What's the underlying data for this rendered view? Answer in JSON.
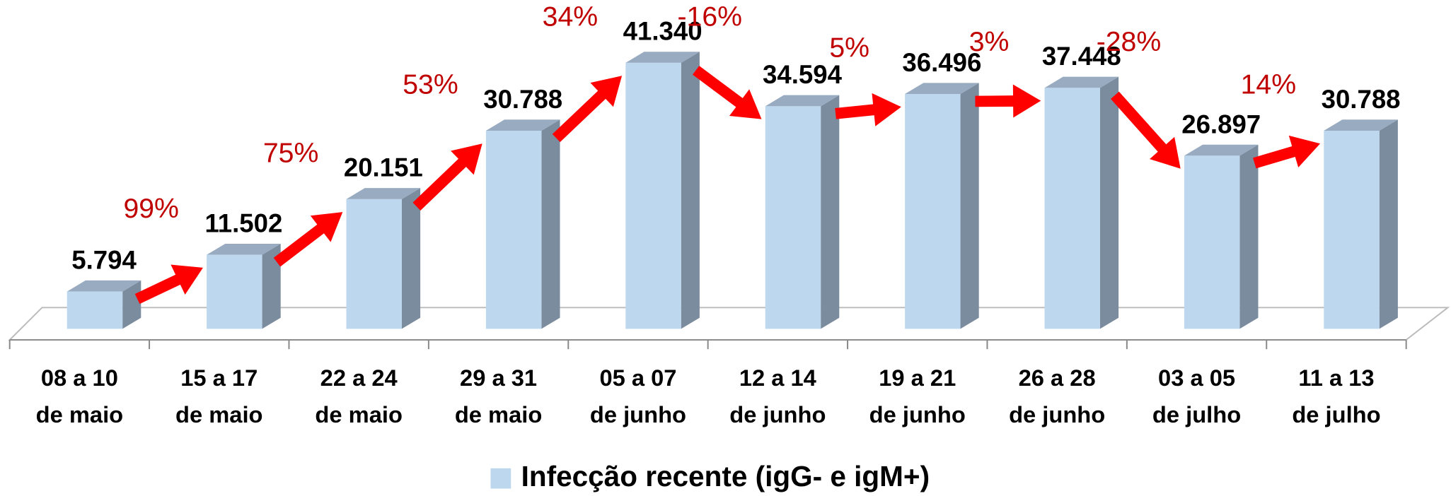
{
  "chart_data": {
    "type": "bar3d",
    "categories": [
      [
        "08 a 10",
        "de maio"
      ],
      [
        "15 a 17",
        "de maio"
      ],
      [
        "22 a 24",
        "de maio"
      ],
      [
        "29 a 31",
        "de maio"
      ],
      [
        "05 a 07",
        "de junho"
      ],
      [
        "12 a 14",
        "de junho"
      ],
      [
        "19 a 21",
        "de junho"
      ],
      [
        "26 a 28",
        "de junho"
      ],
      [
        "03 a 05",
        "de julho"
      ],
      [
        "11 a 13",
        "de julho"
      ]
    ],
    "series": [
      {
        "name": "Infecção recente (igG- e igM+)",
        "color": "#bdd7ee",
        "values": [
          5794,
          11502,
          20151,
          30788,
          41340,
          34594,
          36496,
          37448,
          26897,
          30788
        ],
        "value_labels": [
          "5.794",
          "11.502",
          "20.151",
          "30.788",
          "41.340",
          "34.594",
          "36.496",
          "37.448",
          "26.897",
          "30.788"
        ]
      }
    ],
    "annotations": [
      {
        "value": 99,
        "label": "99%"
      },
      {
        "value": 75,
        "label": "75%"
      },
      {
        "value": 53,
        "label": "53%"
      },
      {
        "value": 34,
        "label": "34%"
      },
      {
        "value": -16,
        "label": "-16%"
      },
      {
        "value": 5,
        "label": "5%"
      },
      {
        "value": 3,
        "label": "3%"
      },
      {
        "value": -28,
        "label": "-28%"
      },
      {
        "value": 14,
        "label": "14%"
      }
    ],
    "annotation_color": "#ff0000",
    "legend": "bottom"
  }
}
